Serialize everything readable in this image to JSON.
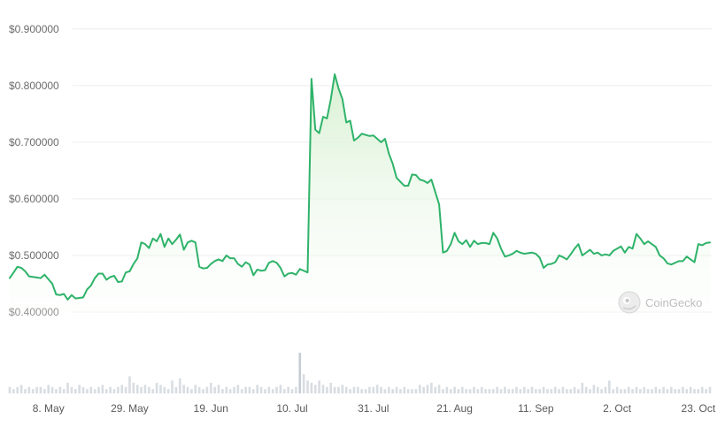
{
  "chart_data": {
    "type": "line",
    "ylim": [
      0.35,
      0.92
    ],
    "yticks": [
      {
        "value": 0.9,
        "label": "$0.900000"
      },
      {
        "value": 0.8,
        "label": "$0.800000"
      },
      {
        "value": 0.7,
        "label": "$0.700000"
      },
      {
        "value": 0.6,
        "label": "$0.600000"
      },
      {
        "value": 0.5,
        "label": "$0.500000"
      },
      {
        "value": 0.4,
        "label": "$0.400000"
      }
    ],
    "xticks": [
      {
        "day": 7,
        "label": "8. May"
      },
      {
        "day": 28,
        "label": "29. May"
      },
      {
        "day": 49,
        "label": "19. Jun"
      },
      {
        "day": 70,
        "label": "10. Jul"
      },
      {
        "day": 91,
        "label": "31. Jul"
      },
      {
        "day": 112,
        "label": "21. Aug"
      },
      {
        "day": 133,
        "label": "11. Sep"
      },
      {
        "day": 154,
        "label": "2. Oct"
      },
      {
        "day": 175,
        "label": "23. Oct"
      }
    ],
    "xlim": [
      -3,
      178
    ],
    "series": [
      {
        "points": [
          [
            -3,
            0.46
          ],
          [
            -2,
            0.47
          ],
          [
            -1,
            0.48
          ],
          [
            0,
            0.478
          ],
          [
            1,
            0.472
          ],
          [
            2,
            0.463
          ],
          [
            3,
            0.462
          ],
          [
            4,
            0.461
          ],
          [
            5,
            0.46
          ],
          [
            6,
            0.466
          ],
          [
            7,
            0.458
          ],
          [
            8,
            0.45
          ],
          [
            9,
            0.431
          ],
          [
            10,
            0.43
          ],
          [
            11,
            0.432
          ],
          [
            12,
            0.422
          ],
          [
            13,
            0.43
          ],
          [
            14,
            0.424
          ],
          [
            15,
            0.425
          ],
          [
            16,
            0.426
          ],
          [
            17,
            0.44
          ],
          [
            18,
            0.447
          ],
          [
            19,
            0.46
          ],
          [
            20,
            0.468
          ],
          [
            21,
            0.468
          ],
          [
            22,
            0.457
          ],
          [
            23,
            0.462
          ],
          [
            24,
            0.464
          ],
          [
            25,
            0.453
          ],
          [
            26,
            0.454
          ],
          [
            27,
            0.47
          ],
          [
            28,
            0.472
          ],
          [
            29,
            0.485
          ],
          [
            30,
            0.495
          ],
          [
            31,
            0.523
          ],
          [
            32,
            0.52
          ],
          [
            33,
            0.513
          ],
          [
            34,
            0.53
          ],
          [
            35,
            0.525
          ],
          [
            36,
            0.538
          ],
          [
            37,
            0.515
          ],
          [
            38,
            0.53
          ],
          [
            39,
            0.52
          ],
          [
            40,
            0.528
          ],
          [
            41,
            0.537
          ],
          [
            42,
            0.51
          ],
          [
            43,
            0.523
          ],
          [
            44,
            0.526
          ],
          [
            45,
            0.523
          ],
          [
            46,
            0.48
          ],
          [
            47,
            0.477
          ],
          [
            48,
            0.478
          ],
          [
            49,
            0.485
          ],
          [
            50,
            0.49
          ],
          [
            51,
            0.493
          ],
          [
            52,
            0.49
          ],
          [
            53,
            0.5
          ],
          [
            54,
            0.495
          ],
          [
            55,
            0.495
          ],
          [
            56,
            0.485
          ],
          [
            57,
            0.48
          ],
          [
            58,
            0.488
          ],
          [
            59,
            0.484
          ],
          [
            60,
            0.465
          ],
          [
            61,
            0.475
          ],
          [
            62,
            0.473
          ],
          [
            63,
            0.474
          ],
          [
            64,
            0.487
          ],
          [
            65,
            0.49
          ],
          [
            66,
            0.487
          ],
          [
            67,
            0.478
          ],
          [
            68,
            0.463
          ],
          [
            69,
            0.468
          ],
          [
            70,
            0.469
          ],
          [
            71,
            0.466
          ],
          [
            72,
            0.476
          ],
          [
            73,
            0.473
          ],
          [
            74,
            0.47
          ],
          [
            75,
            0.812
          ],
          [
            76,
            0.722
          ],
          [
            77,
            0.716
          ],
          [
            78,
            0.745
          ],
          [
            79,
            0.742
          ],
          [
            80,
            0.776
          ],
          [
            81,
            0.82
          ],
          [
            82,
            0.795
          ],
          [
            83,
            0.776
          ],
          [
            84,
            0.735
          ],
          [
            85,
            0.738
          ],
          [
            86,
            0.703
          ],
          [
            87,
            0.708
          ],
          [
            88,
            0.715
          ],
          [
            89,
            0.713
          ],
          [
            90,
            0.711
          ],
          [
            91,
            0.712
          ],
          [
            92,
            0.706
          ],
          [
            93,
            0.7
          ],
          [
            94,
            0.706
          ],
          [
            95,
            0.68
          ],
          [
            96,
            0.662
          ],
          [
            97,
            0.637
          ],
          [
            98,
            0.63
          ],
          [
            99,
            0.623
          ],
          [
            100,
            0.623
          ],
          [
            101,
            0.643
          ],
          [
            102,
            0.642
          ],
          [
            103,
            0.634
          ],
          [
            104,
            0.632
          ],
          [
            105,
            0.628
          ],
          [
            106,
            0.634
          ],
          [
            107,
            0.612
          ],
          [
            108,
            0.59
          ],
          [
            109,
            0.505
          ],
          [
            110,
            0.508
          ],
          [
            111,
            0.52
          ],
          [
            112,
            0.54
          ],
          [
            113,
            0.525
          ],
          [
            114,
            0.52
          ],
          [
            115,
            0.527
          ],
          [
            116,
            0.515
          ],
          [
            117,
            0.526
          ],
          [
            118,
            0.52
          ],
          [
            119,
            0.522
          ],
          [
            120,
            0.522
          ],
          [
            121,
            0.52
          ],
          [
            122,
            0.54
          ],
          [
            123,
            0.53
          ],
          [
            124,
            0.512
          ],
          [
            125,
            0.498
          ],
          [
            126,
            0.5
          ],
          [
            127,
            0.503
          ],
          [
            128,
            0.508
          ],
          [
            129,
            0.505
          ],
          [
            130,
            0.503
          ],
          [
            131,
            0.504
          ],
          [
            132,
            0.505
          ],
          [
            133,
            0.503
          ],
          [
            134,
            0.496
          ],
          [
            135,
            0.478
          ],
          [
            136,
            0.484
          ],
          [
            137,
            0.485
          ],
          [
            138,
            0.488
          ],
          [
            139,
            0.5
          ],
          [
            140,
            0.497
          ],
          [
            141,
            0.493
          ],
          [
            142,
            0.502
          ],
          [
            143,
            0.512
          ],
          [
            144,
            0.52
          ],
          [
            145,
            0.5
          ],
          [
            146,
            0.505
          ],
          [
            147,
            0.51
          ],
          [
            148,
            0.503
          ],
          [
            149,
            0.505
          ],
          [
            150,
            0.5
          ],
          [
            151,
            0.502
          ],
          [
            152,
            0.5
          ],
          [
            153,
            0.508
          ],
          [
            154,
            0.512
          ],
          [
            155,
            0.516
          ],
          [
            156,
            0.505
          ],
          [
            157,
            0.515
          ],
          [
            158,
            0.512
          ],
          [
            159,
            0.538
          ],
          [
            160,
            0.53
          ],
          [
            161,
            0.52
          ],
          [
            162,
            0.525
          ],
          [
            163,
            0.52
          ],
          [
            164,
            0.515
          ],
          [
            165,
            0.5
          ],
          [
            166,
            0.495
          ],
          [
            167,
            0.486
          ],
          [
            168,
            0.484
          ],
          [
            169,
            0.487
          ],
          [
            170,
            0.49
          ],
          [
            171,
            0.49
          ],
          [
            172,
            0.498
          ],
          [
            173,
            0.493
          ],
          [
            174,
            0.488
          ],
          [
            175,
            0.52
          ],
          [
            176,
            0.518
          ],
          [
            177,
            0.522
          ],
          [
            178,
            0.523
          ]
        ]
      }
    ],
    "volume": [
      3,
      2,
      3,
      4,
      2,
      3,
      2,
      3,
      3,
      2,
      4,
      3,
      2,
      3,
      2,
      5,
      3,
      2,
      4,
      3,
      2,
      3,
      2,
      3,
      4,
      2,
      3,
      2,
      3,
      4,
      3,
      8,
      5,
      4,
      3,
      4,
      3,
      2,
      5,
      4,
      3,
      2,
      6,
      3,
      7,
      4,
      3,
      2,
      4,
      3,
      2,
      3,
      5,
      3,
      4,
      2,
      3,
      2,
      3,
      4,
      2,
      3,
      3,
      2,
      4,
      3,
      2,
      3,
      2,
      3,
      4,
      2,
      3,
      2,
      3,
      19,
      9,
      6,
      5,
      4,
      6,
      4,
      3,
      5,
      3,
      3,
      4,
      3,
      2,
      3,
      3,
      2,
      2,
      3,
      3,
      4,
      3,
      2,
      3,
      2,
      3,
      2,
      3,
      2,
      2,
      2,
      4,
      3,
      4,
      5,
      3,
      4,
      2,
      3,
      2,
      3,
      2,
      3,
      2,
      2,
      3,
      2,
      3,
      2,
      2,
      2,
      3,
      2,
      3,
      2,
      2,
      3,
      2,
      3,
      2,
      3,
      2,
      2,
      3,
      2,
      2,
      3,
      2,
      3,
      2,
      2,
      3,
      2,
      5,
      3,
      2,
      4,
      3,
      2,
      3,
      6,
      2,
      3,
      2,
      2,
      3,
      2,
      3,
      2,
      3,
      2,
      2,
      3,
      2,
      3,
      2,
      3,
      2,
      2,
      3,
      2,
      3,
      2,
      2,
      3,
      2,
      3
    ]
  },
  "watermark": {
    "label": "CoinGecko",
    "icon": "coingecko-logo-icon"
  },
  "colors": {
    "line": "#2fb36a",
    "fill_top": "#d6f0d0",
    "volume_bar": "#d8dde2",
    "volume_bar_peak": "#c5ccd3"
  }
}
